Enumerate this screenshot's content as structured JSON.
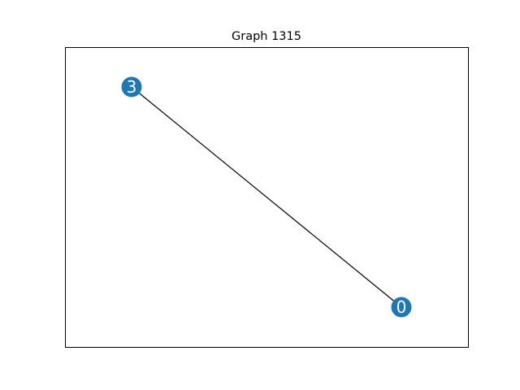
{
  "title": "Graph 1315",
  "style": {
    "node_color": "#1f77b4",
    "edge_color": "#000000",
    "frame_color": "#000000",
    "label_color": "#ffffff"
  },
  "graph": {
    "nodes": [
      {
        "id": "3",
        "label": "3"
      },
      {
        "id": "0",
        "label": "0"
      }
    ],
    "edges": [
      {
        "source": "3",
        "target": "0"
      }
    ]
  }
}
